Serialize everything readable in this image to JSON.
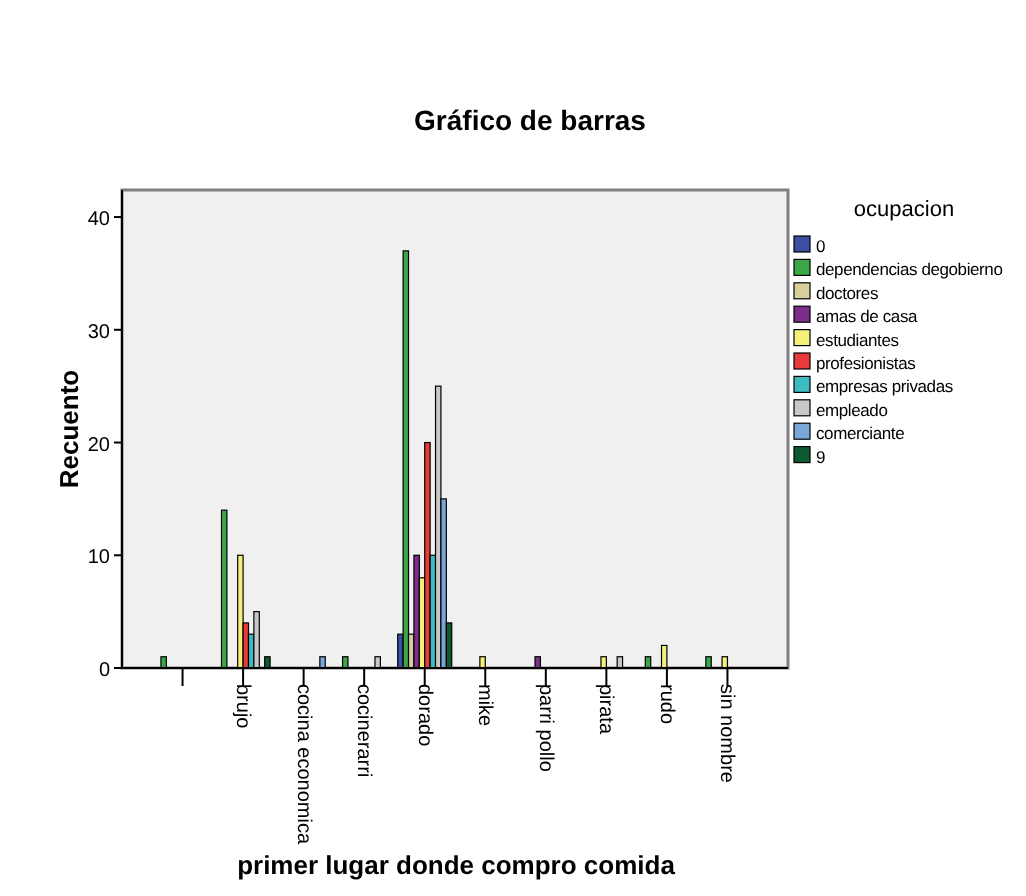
{
  "chart_data": {
    "type": "bar",
    "title": "Gráfico de barras",
    "xlabel": "primer lugar donde compro comida",
    "ylabel": "Recuento",
    "legend_title": "ocupacion",
    "legend": "right",
    "grid": false,
    "categories": [
      null,
      "brujo",
      "cocina economica",
      "cocinerarri",
      "dorado",
      "mike",
      "parri pollo",
      "pirata",
      "rudo",
      "sin nombre"
    ],
    "ylim": [
      0,
      42.4
    ],
    "yticks": [
      0,
      10,
      20,
      30,
      40
    ],
    "series": [
      {
        "name": "0",
        "color": "#3c4fa0",
        "values": [
          null,
          null,
          null,
          null,
          3,
          null,
          null,
          null,
          null,
          null
        ]
      },
      {
        "name": "dependencias degobierno",
        "color": "#3aa648",
        "values": [
          1,
          14,
          null,
          1,
          37,
          null,
          null,
          null,
          1,
          1
        ]
      },
      {
        "name": "doctores",
        "color": "#d8cf9a",
        "values": [
          null,
          null,
          null,
          null,
          3,
          null,
          null,
          null,
          null,
          null
        ]
      },
      {
        "name": "amas de casa",
        "color": "#7b2f8a",
        "values": [
          null,
          null,
          null,
          null,
          10,
          null,
          1,
          null,
          null,
          null
        ]
      },
      {
        "name": "estudiantes",
        "color": "#f5f07a",
        "values": [
          null,
          10,
          null,
          null,
          8,
          1,
          null,
          1,
          2,
          1
        ]
      },
      {
        "name": "profesionistas",
        "color": "#e83a3a",
        "values": [
          null,
          4,
          null,
          null,
          20,
          null,
          null,
          null,
          null,
          null
        ]
      },
      {
        "name": "empresas privadas",
        "color": "#3cbcc0",
        "values": [
          null,
          3,
          null,
          null,
          10,
          null,
          null,
          null,
          null,
          null
        ]
      },
      {
        "name": "empleado",
        "color": "#c8c8c8",
        "values": [
          null,
          5,
          null,
          1,
          25,
          null,
          null,
          1,
          null,
          null
        ]
      },
      {
        "name": "comerciante",
        "color": "#7ba7d8",
        "values": [
          null,
          null,
          1,
          null,
          15,
          null,
          null,
          null,
          null,
          null
        ]
      },
      {
        "name": "9",
        "color": "#0e5a30",
        "values": [
          null,
          1,
          null,
          null,
          4,
          null,
          null,
          null,
          null,
          null
        ]
      }
    ]
  }
}
